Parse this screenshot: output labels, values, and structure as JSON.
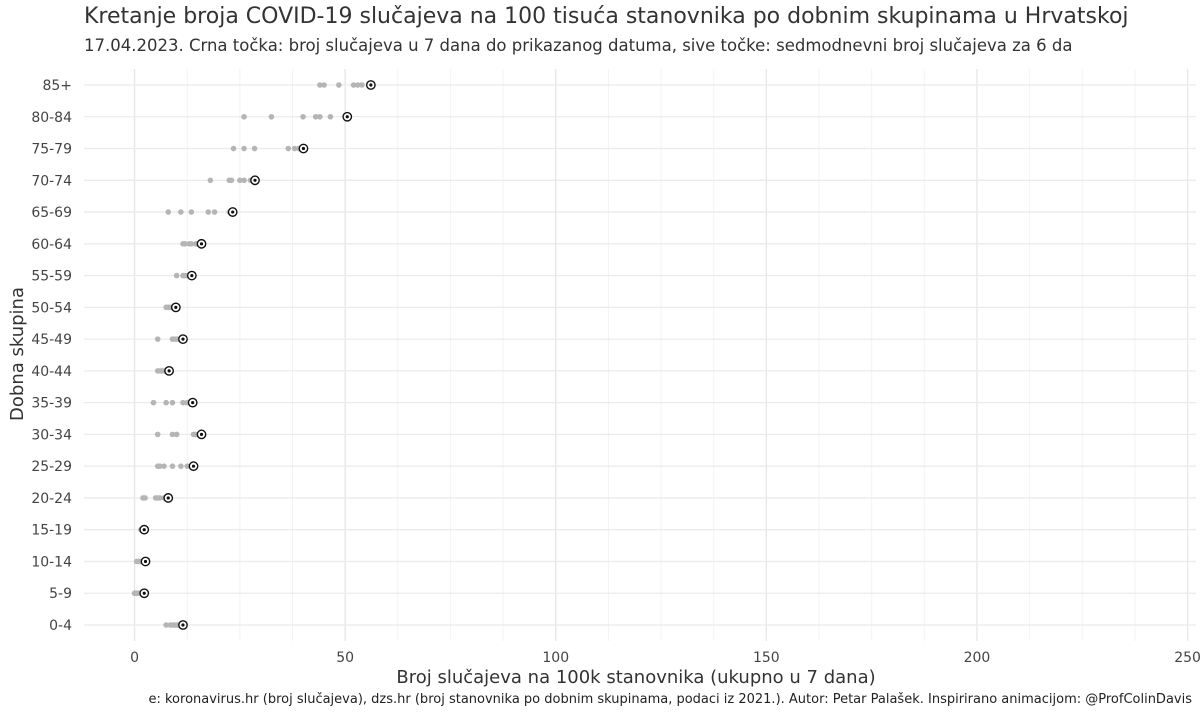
{
  "chart_data": {
    "type": "scatter",
    "title": "Kretanje broja COVID-19 slučajeva na 100 tisuća stanovnika po dobnim skupinama u Hrvatskoj",
    "subtitle": "17.04.2023. Crna točka: broj slučajeva u 7 dana do prikazanog datuma, sive točke: sedmodnevni broj slučajeva za 6 da",
    "xlabel": "Broj slučajeva na 100k stanovnika (ukupno u 7 dana)",
    "ylabel": "Dobna skupina",
    "xlim": [
      -12,
      252
    ],
    "x_ticks": [
      0,
      50,
      100,
      150,
      200,
      250
    ],
    "grid": true,
    "categories": [
      "0-4",
      "5-9",
      "10-14",
      "15-19",
      "20-24",
      "25-29",
      "30-34",
      "35-39",
      "40-44",
      "45-49",
      "50-54",
      "55-59",
      "60-64",
      "65-69",
      "70-74",
      "75-79",
      "80-84",
      "85+"
    ],
    "series": [
      {
        "values": [
          11.5,
          2.3,
          2.6,
          2.3,
          8.0,
          14.0,
          15.9,
          13.8,
          8.2,
          11.5,
          9.8,
          13.6,
          15.9,
          23.3,
          28.6,
          40.1,
          50.5,
          56.1
        ]
      },
      {
        "values": [
          [
            7.5,
            8.5,
            9.0,
            9.5,
            10.0,
            10.5
          ],
          [
            0.0,
            0.5,
            1.0,
            1.5,
            2.0,
            2.0
          ],
          [
            0.5,
            1.0,
            1.5,
            2.0,
            2.5,
            2.0
          ],
          [
            1.5,
            1.8,
            2.0,
            2.0,
            2.0,
            2.2
          ],
          [
            2.0,
            2.5,
            5.0,
            5.5,
            6.0,
            7.0
          ],
          [
            5.5,
            6.0,
            7.0,
            9.0,
            11.0,
            12.5
          ],
          [
            5.5,
            9.0,
            10.0,
            14.0,
            14.5,
            15.5
          ],
          [
            4.5,
            7.5,
            9.0,
            11.5,
            12.5,
            13.5
          ],
          [
            5.5,
            6.0,
            6.5,
            7.0,
            7.5,
            8.0
          ],
          [
            5.5,
            9.0,
            9.5,
            10.0,
            10.5,
            11.0
          ],
          [
            7.5,
            8.0,
            8.5,
            9.0,
            9.5,
            9.5
          ],
          [
            10.0,
            11.5,
            12.0,
            12.5,
            13.0,
            13.5
          ],
          [
            11.5,
            12.0,
            13.0,
            13.5,
            14.5,
            15.0
          ],
          [
            8.0,
            11.0,
            13.5,
            17.5,
            19.0,
            22.5
          ],
          [
            18.0,
            22.5,
            23.0,
            25.0,
            26.0,
            27.5
          ],
          [
            23.5,
            26.0,
            28.5,
            36.5,
            38.0,
            39.0
          ],
          [
            26.0,
            32.5,
            40.0,
            43.0,
            44.0,
            46.5
          ],
          [
            44.0,
            45.0,
            48.5,
            52.0,
            53.0,
            54.0
          ]
        ]
      }
    ],
    "caption": "e: koronavirus.hr (broj slučajeva), dzs.hr (broj stanovnika po dobnim skupinama, podaci iz 2021.). Autor: Petar Palašek. Inspirirano animacijom: @ProfColinDavis"
  }
}
